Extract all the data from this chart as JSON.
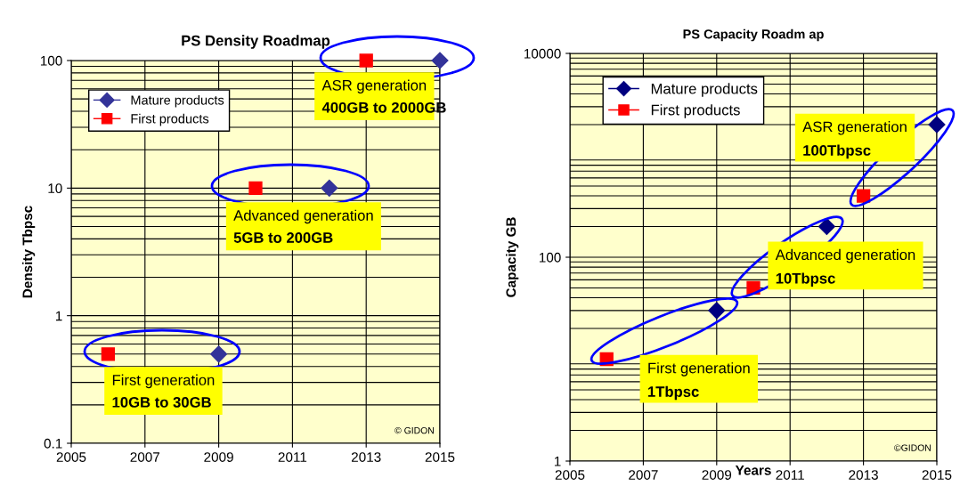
{
  "chart_data": [
    {
      "type": "scatter",
      "title": "PS Density Roadmap",
      "ylabel": "Density Tbpsc",
      "log": "y",
      "grid": true,
      "legend": "top left",
      "x": [
        2006,
        2009,
        2010,
        2012,
        2013,
        2015
      ],
      "xlim": [
        2005,
        2015
      ],
      "xticks": [
        2005,
        2007,
        2009,
        2011,
        2013,
        2015
      ],
      "ylim": [
        0.1,
        100
      ],
      "yticks": [
        0.1,
        1,
        10,
        100
      ],
      "series": [
        {
          "name": "Mature products",
          "color": "#333399",
          "marker": "diamond",
          "values": [
            null,
            0.5,
            null,
            10,
            null,
            100
          ]
        },
        {
          "name": "First products",
          "color": "#ff0000",
          "marker": "square",
          "values": [
            0.5,
            null,
            10,
            null,
            100,
            null
          ]
        }
      ],
      "annotations": [
        "ASR generation\n400GB to 2000GB",
        "Advanced generation\n5GB to 200GB",
        "First generation\n10GB to 30GB",
        "© GIDON"
      ]
    },
    {
      "type": "scatter",
      "title": "PS Capacity Roadm ap",
      "xlabel": "Years",
      "ylabel": "Capacity GB",
      "log": "y",
      "grid": true,
      "legend": "top left",
      "x": [
        2006,
        2009,
        2010,
        2012,
        2013,
        2015
      ],
      "xlim": [
        2005,
        2015
      ],
      "xticks": [
        2005,
        2007,
        2009,
        2011,
        2013,
        2015
      ],
      "ylim": [
        1,
        10000
      ],
      "yticks": [
        1,
        100,
        10000
      ],
      "series": [
        {
          "name": "Mature products",
          "color": "#000080",
          "marker": "diamond",
          "values": [
            null,
            30,
            null,
            200,
            null,
            2000
          ]
        },
        {
          "name": "First products",
          "color": "#ff0000",
          "marker": "square",
          "values": [
            10,
            null,
            50,
            null,
            400,
            null
          ]
        }
      ],
      "annotations": [
        "ASR generation\n100Tbpsc",
        "Advanced generation\n10Tbpsc",
        "First generation\n1Tbpsc",
        "©GIDON"
      ]
    }
  ]
}
